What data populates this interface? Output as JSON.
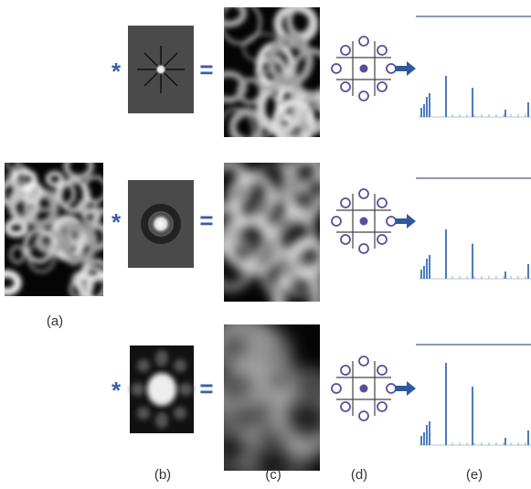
{
  "labels": {
    "a": "(a)",
    "b": "(b)",
    "c": "(c)",
    "d": "(d)",
    "e": "(e)"
  },
  "rows": [
    {
      "operator": "*",
      "equals": "="
    },
    {
      "operator": "*",
      "equals": "="
    },
    {
      "operator": "*",
      "equals": "="
    }
  ]
}
